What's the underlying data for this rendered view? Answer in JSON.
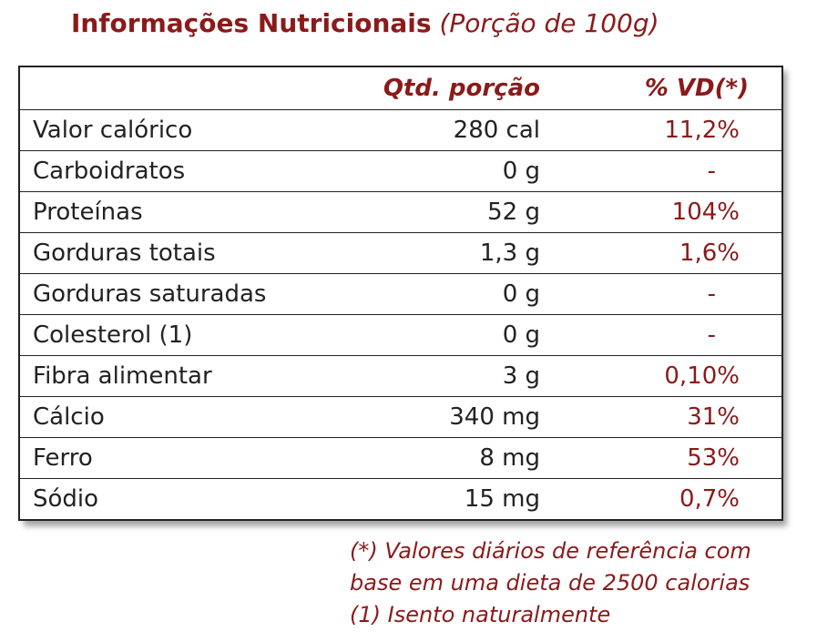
{
  "title": {
    "main": "Informações Nutricionais",
    "sub": "(Porção de 100g)"
  },
  "table": {
    "headers": {
      "name": "",
      "qty": "Qtd. porção",
      "vd": "% VD(*)"
    },
    "rows": [
      {
        "name": "Valor calórico",
        "qty": "280 cal",
        "vd": "11,2%"
      },
      {
        "name": "Carboidratos",
        "qty": "0 g",
        "vd": "-"
      },
      {
        "name": "Proteínas",
        "qty": "52 g",
        "vd": "104%"
      },
      {
        "name": "Gorduras totais",
        "qty": "1,3 g",
        "vd": "1,6%"
      },
      {
        "name": "Gorduras saturadas",
        "qty": "0 g",
        "vd": "-"
      },
      {
        "name": "Colesterol (1)",
        "qty": "0 g",
        "vd": "-"
      },
      {
        "name": "Fibra alimentar",
        "qty": "3 g",
        "vd": "0,10%"
      },
      {
        "name": "Cálcio",
        "qty": "340 mg",
        "vd": "31%"
      },
      {
        "name": "Ferro",
        "qty": "8 mg",
        "vd": "53%"
      },
      {
        "name": "Sódio",
        "qty": "15 mg",
        "vd": "0,7%"
      }
    ]
  },
  "notes": {
    "line1": "(*) Valores diários de referência com",
    "line2": "base em uma dieta de 2500 calorias",
    "line3": "(1) Isento naturalmente"
  },
  "colors": {
    "accent": "#8b1a1a",
    "text": "#222222",
    "border": "#222222"
  }
}
